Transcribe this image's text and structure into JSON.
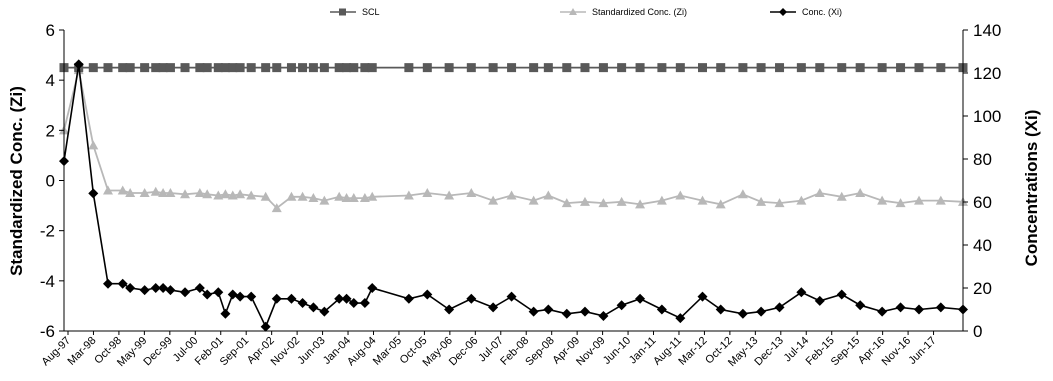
{
  "chart_data": {
    "type": "line",
    "title": "",
    "xlabel": "",
    "ylabel_left": "Standardized Conc. (Zi)",
    "ylabel_right": "Concentrations (Xi)",
    "ylim_left": [
      -6,
      6
    ],
    "yticks_left": [
      "6",
      "4",
      "2",
      "0",
      "-2",
      "-4",
      "-6"
    ],
    "ylim_right": [
      0,
      140
    ],
    "yticks_right": [
      "140",
      "120",
      "100",
      "80",
      "60",
      "40",
      "20",
      "0"
    ],
    "grid": false,
    "legend_position": "top",
    "x_tick_labels": [
      "Aug-97",
      "Mar-98",
      "Oct-98",
      "May-99",
      "Dec-99",
      "Jul-00",
      "Feb-01",
      "Sep-01",
      "Apr-02",
      "Nov-02",
      "Jun-03",
      "Jan-04",
      "Aug-04",
      "Mar-05",
      "Oct-05",
      "May-06",
      "Dec-06",
      "Jul-07",
      "Feb-08",
      "Sep-08",
      "Apr-09",
      "Nov-09",
      "Jun-10",
      "Jan-11",
      "Aug-11",
      "Mar-12",
      "Oct-12",
      "May-13",
      "Dec-13",
      "Jul-14",
      "Feb-15",
      "Sep-15",
      "Apr-16",
      "Nov-16",
      "Jun-17"
    ],
    "x_range": [
      "1997-08-01",
      "2018-01-01"
    ],
    "dates": [
      "1997-08-01",
      "1997-12-01",
      "1998-04-01",
      "1998-08-01",
      "1998-12-01",
      "1999-02-01",
      "1999-06-01",
      "1999-09-01",
      "1999-11-01",
      "2000-01-01",
      "2000-05-01",
      "2000-09-01",
      "2000-11-01",
      "2001-02-01",
      "2001-04-01",
      "2001-06-01",
      "2001-08-01",
      "2001-11-01",
      "2002-03-01",
      "2002-06-01",
      "2002-10-01",
      "2003-01-01",
      "2003-04-01",
      "2003-07-01",
      "2003-11-01",
      "2004-01-01",
      "2004-03-01",
      "2004-06-01",
      "2004-08-01",
      "2005-06-01",
      "2005-11-01",
      "2006-05-01",
      "2006-11-01",
      "2007-05-01",
      "2007-10-01",
      "2008-04-01",
      "2008-08-01",
      "2009-01-01",
      "2009-06-01",
      "2009-11-01",
      "2010-04-01",
      "2010-09-01",
      "2011-03-01",
      "2011-08-01",
      "2012-02-01",
      "2012-07-01",
      "2013-01-01",
      "2013-06-01",
      "2013-11-01",
      "2014-05-01",
      "2014-10-01",
      "2015-04-01",
      "2015-09-01",
      "2016-03-01",
      "2016-08-01",
      "2017-01-01",
      "2017-07-01",
      "2018-01-01"
    ],
    "series": [
      {
        "name": "SCL",
        "axis": "left",
        "color": "#595959",
        "marker": "square",
        "values": [
          4.5,
          4.5,
          4.5,
          4.5,
          4.5,
          4.5,
          4.5,
          4.5,
          4.5,
          4.5,
          4.5,
          4.5,
          4.5,
          4.5,
          4.5,
          4.5,
          4.5,
          4.5,
          4.5,
          4.5,
          4.5,
          4.5,
          4.5,
          4.5,
          4.5,
          4.5,
          4.5,
          4.5,
          4.5,
          4.5,
          4.5,
          4.5,
          4.5,
          4.5,
          4.5,
          4.5,
          4.5,
          4.5,
          4.5,
          4.5,
          4.5,
          4.5,
          4.5,
          4.5,
          4.5,
          4.5,
          4.5,
          4.5,
          4.5,
          4.5,
          4.5,
          4.5,
          4.5,
          4.5,
          4.5,
          4.5,
          4.5,
          4.5
        ]
      },
      {
        "name": "Standardized Conc. (Zi)",
        "axis": "left",
        "color": "#b8b8b8",
        "marker": "triangle",
        "values": [
          2.0,
          4.4,
          1.4,
          -0.4,
          -0.4,
          -0.5,
          -0.5,
          -0.45,
          -0.5,
          -0.5,
          -0.55,
          -0.5,
          -0.55,
          -0.6,
          -0.55,
          -0.6,
          -0.55,
          -0.6,
          -0.65,
          -1.1,
          -0.65,
          -0.65,
          -0.7,
          -0.8,
          -0.65,
          -0.7,
          -0.7,
          -0.7,
          -0.65,
          -0.6,
          -0.5,
          -0.6,
          -0.5,
          -0.8,
          -0.6,
          -0.8,
          -0.6,
          -0.9,
          -0.85,
          -0.9,
          -0.85,
          -0.95,
          -0.8,
          -0.6,
          -0.8,
          -0.95,
          -0.55,
          -0.85,
          -0.9,
          -0.8,
          -0.5,
          -0.65,
          -0.5,
          -0.8,
          -0.9,
          -0.8,
          -0.8,
          -0.85
        ]
      },
      {
        "name": "Conc. (Xi)",
        "axis": "right",
        "color": "#000000",
        "marker": "diamond",
        "values": [
          79,
          124,
          64,
          22,
          22,
          20,
          19,
          20,
          20,
          19,
          18,
          20,
          17,
          18,
          8,
          17,
          16,
          16,
          2,
          15,
          15,
          13,
          11,
          9,
          15,
          15,
          13,
          13,
          20,
          15,
          17,
          10,
          15,
          11,
          16,
          9,
          10,
          8,
          9,
          7,
          12,
          15,
          10,
          6,
          16,
          10,
          8,
          9,
          11,
          18,
          14,
          17,
          12,
          9,
          11,
          10,
          11,
          10
        ]
      }
    ]
  }
}
